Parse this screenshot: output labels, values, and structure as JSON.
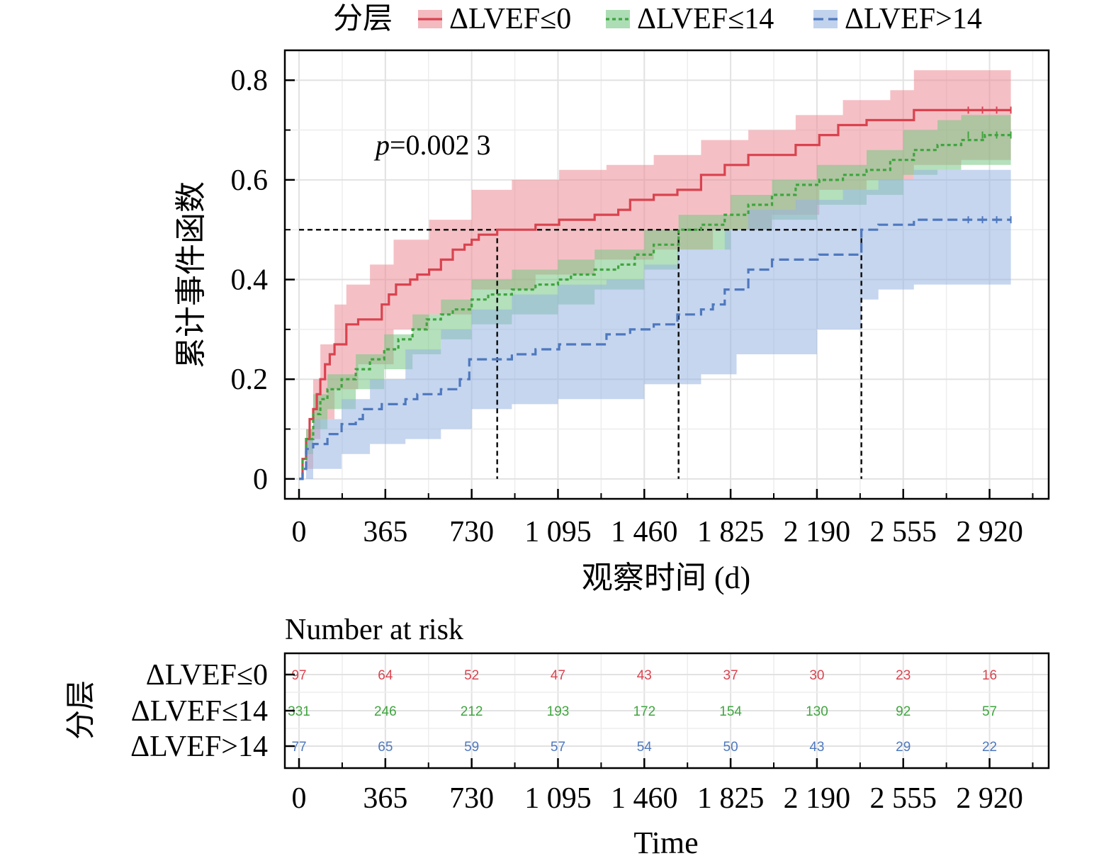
{
  "chart_data": {
    "type": "line",
    "legend": {
      "title": "分层",
      "position": "top",
      "entries": [
        "ΔLVEF≤0",
        "ΔLVEF≤14",
        "ΔLVEF>14"
      ]
    },
    "annotation": {
      "prefix": "p",
      "text": "=0.002 3"
    },
    "xlabel": "观察时间 (d)",
    "ylabel": "累计事件函数",
    "xlim": [
      -60,
      3170
    ],
    "ylim": [
      -0.04,
      0.86
    ],
    "xticks": [
      0,
      365,
      730,
      1095,
      1460,
      1825,
      2190,
      2555,
      2920
    ],
    "xtick_labels": [
      "0",
      "365",
      "730",
      "1 095",
      "1 460",
      "1 825",
      "2 190",
      "2 555",
      "2 920"
    ],
    "yticks": [
      0,
      0.2,
      0.4,
      0.6,
      0.8
    ],
    "ytick_labels": [
      "0",
      "0.2",
      "0.4",
      "0.6",
      "0.8"
    ],
    "grid": true,
    "median_reference": {
      "y": 0.5,
      "x": [
        838,
        1605,
        2378
      ]
    },
    "series": [
      {
        "name": "ΔLVEF≤0",
        "color": "#d9434f",
        "band_color": "#eb8c96",
        "line_style": "solid",
        "points": [
          [
            0,
            0
          ],
          [
            15,
            0.04
          ],
          [
            30,
            0.08
          ],
          [
            45,
            0.12
          ],
          [
            60,
            0.14
          ],
          [
            75,
            0.17
          ],
          [
            90,
            0.2
          ],
          [
            110,
            0.23
          ],
          [
            130,
            0.25
          ],
          [
            150,
            0.27
          ],
          [
            200,
            0.31
          ],
          [
            250,
            0.32
          ],
          [
            300,
            0.32
          ],
          [
            350,
            0.35
          ],
          [
            380,
            0.37
          ],
          [
            410,
            0.39
          ],
          [
            440,
            0.39
          ],
          [
            470,
            0.4
          ],
          [
            500,
            0.41
          ],
          [
            550,
            0.42
          ],
          [
            600,
            0.44
          ],
          [
            650,
            0.46
          ],
          [
            700,
            0.47
          ],
          [
            730,
            0.48
          ],
          [
            760,
            0.49
          ],
          [
            838,
            0.5
          ],
          [
            1000,
            0.51
          ],
          [
            1100,
            0.52
          ],
          [
            1250,
            0.53
          ],
          [
            1350,
            0.54
          ],
          [
            1400,
            0.56
          ],
          [
            1500,
            0.57
          ],
          [
            1600,
            0.58
          ],
          [
            1700,
            0.61
          ],
          [
            1800,
            0.63
          ],
          [
            1900,
            0.65
          ],
          [
            2100,
            0.67
          ],
          [
            2200,
            0.69
          ],
          [
            2280,
            0.71
          ],
          [
            2400,
            0.72
          ],
          [
            2500,
            0.72
          ],
          [
            2600,
            0.74
          ],
          [
            3010,
            0.74
          ]
        ],
        "lower": [
          [
            0,
            0
          ],
          [
            30,
            0.02
          ],
          [
            60,
            0.08
          ],
          [
            90,
            0.12
          ],
          [
            150,
            0.18
          ],
          [
            250,
            0.23
          ],
          [
            400,
            0.3
          ],
          [
            550,
            0.33
          ],
          [
            730,
            0.38
          ],
          [
            1000,
            0.41
          ],
          [
            1250,
            0.44
          ],
          [
            1500,
            0.46
          ],
          [
            1750,
            0.5
          ],
          [
            2000,
            0.53
          ],
          [
            2200,
            0.58
          ],
          [
            2400,
            0.6
          ],
          [
            2600,
            0.63
          ],
          [
            2800,
            0.64
          ],
          [
            3010,
            0.65
          ]
        ],
        "upper": [
          [
            0,
            0
          ],
          [
            30,
            0.1
          ],
          [
            60,
            0.2
          ],
          [
            90,
            0.27
          ],
          [
            150,
            0.35
          ],
          [
            200,
            0.39
          ],
          [
            300,
            0.43
          ],
          [
            400,
            0.48
          ],
          [
            550,
            0.52
          ],
          [
            730,
            0.58
          ],
          [
            900,
            0.6
          ],
          [
            1100,
            0.62
          ],
          [
            1300,
            0.63
          ],
          [
            1500,
            0.65
          ],
          [
            1700,
            0.68
          ],
          [
            1900,
            0.7
          ],
          [
            2100,
            0.73
          ],
          [
            2300,
            0.76
          ],
          [
            2500,
            0.78
          ],
          [
            2600,
            0.82
          ],
          [
            3010,
            0.82
          ]
        ]
      },
      {
        "name": "ΔLVEF≤14",
        "color": "#3fa53f",
        "band_color": "#77c683",
        "line_style": "dotted",
        "points": [
          [
            0,
            0
          ],
          [
            15,
            0.04
          ],
          [
            30,
            0.08
          ],
          [
            60,
            0.13
          ],
          [
            90,
            0.16
          ],
          [
            120,
            0.18
          ],
          [
            180,
            0.2
          ],
          [
            240,
            0.22
          ],
          [
            300,
            0.24
          ],
          [
            360,
            0.26
          ],
          [
            420,
            0.28
          ],
          [
            480,
            0.3
          ],
          [
            540,
            0.32
          ],
          [
            600,
            0.33
          ],
          [
            650,
            0.34
          ],
          [
            730,
            0.36
          ],
          [
            800,
            0.37
          ],
          [
            900,
            0.38
          ],
          [
            1000,
            0.39
          ],
          [
            1095,
            0.4
          ],
          [
            1150,
            0.41
          ],
          [
            1250,
            0.42
          ],
          [
            1350,
            0.43
          ],
          [
            1420,
            0.45
          ],
          [
            1500,
            0.47
          ],
          [
            1605,
            0.5
          ],
          [
            1700,
            0.51
          ],
          [
            1800,
            0.53
          ],
          [
            1900,
            0.55
          ],
          [
            2000,
            0.57
          ],
          [
            2100,
            0.59
          ],
          [
            2200,
            0.6
          ],
          [
            2300,
            0.61
          ],
          [
            2400,
            0.62
          ],
          [
            2500,
            0.64
          ],
          [
            2600,
            0.66
          ],
          [
            2700,
            0.67
          ],
          [
            2800,
            0.68
          ],
          [
            2900,
            0.69
          ],
          [
            3010,
            0.69
          ]
        ],
        "lower": [
          [
            0,
            0
          ],
          [
            30,
            0.05
          ],
          [
            60,
            0.1
          ],
          [
            120,
            0.14
          ],
          [
            240,
            0.18
          ],
          [
            360,
            0.22
          ],
          [
            480,
            0.25
          ],
          [
            600,
            0.28
          ],
          [
            730,
            0.31
          ],
          [
            900,
            0.33
          ],
          [
            1095,
            0.35
          ],
          [
            1250,
            0.38
          ],
          [
            1460,
            0.42
          ],
          [
            1605,
            0.46
          ],
          [
            1825,
            0.5
          ],
          [
            2000,
            0.52
          ],
          [
            2190,
            0.55
          ],
          [
            2400,
            0.57
          ],
          [
            2555,
            0.61
          ],
          [
            2700,
            0.62
          ],
          [
            2800,
            0.63
          ],
          [
            3010,
            0.64
          ]
        ],
        "upper": [
          [
            0,
            0
          ],
          [
            30,
            0.1
          ],
          [
            60,
            0.17
          ],
          [
            120,
            0.21
          ],
          [
            240,
            0.25
          ],
          [
            360,
            0.29
          ],
          [
            480,
            0.33
          ],
          [
            600,
            0.36
          ],
          [
            730,
            0.4
          ],
          [
            900,
            0.42
          ],
          [
            1095,
            0.44
          ],
          [
            1250,
            0.46
          ],
          [
            1460,
            0.5
          ],
          [
            1605,
            0.53
          ],
          [
            1825,
            0.57
          ],
          [
            2000,
            0.6
          ],
          [
            2190,
            0.63
          ],
          [
            2400,
            0.66
          ],
          [
            2555,
            0.7
          ],
          [
            2700,
            0.72
          ],
          [
            2800,
            0.73
          ],
          [
            3010,
            0.74
          ]
        ]
      },
      {
        "name": "ΔLVEF>14",
        "color": "#4e78be",
        "band_color": "#97b4e1",
        "line_style": "dashed",
        "points": [
          [
            0,
            0
          ],
          [
            15,
            0.02
          ],
          [
            30,
            0.06
          ],
          [
            60,
            0.07
          ],
          [
            120,
            0.09
          ],
          [
            180,
            0.11
          ],
          [
            240,
            0.12
          ],
          [
            270,
            0.14
          ],
          [
            350,
            0.15
          ],
          [
            450,
            0.16
          ],
          [
            500,
            0.17
          ],
          [
            600,
            0.18
          ],
          [
            680,
            0.2
          ],
          [
            720,
            0.24
          ],
          [
            800,
            0.24
          ],
          [
            900,
            0.25
          ],
          [
            1000,
            0.26
          ],
          [
            1100,
            0.27
          ],
          [
            1300,
            0.29
          ],
          [
            1400,
            0.3
          ],
          [
            1500,
            0.31
          ],
          [
            1600,
            0.33
          ],
          [
            1700,
            0.34
          ],
          [
            1750,
            0.35
          ],
          [
            1800,
            0.38
          ],
          [
            1900,
            0.42
          ],
          [
            2000,
            0.44
          ],
          [
            2200,
            0.45
          ],
          [
            2378,
            0.5
          ],
          [
            2450,
            0.51
          ],
          [
            2600,
            0.52
          ],
          [
            3010,
            0.52
          ]
        ],
        "lower": [
          [
            0,
            0
          ],
          [
            60,
            0.02
          ],
          [
            180,
            0.05
          ],
          [
            300,
            0.07
          ],
          [
            450,
            0.08
          ],
          [
            600,
            0.1
          ],
          [
            730,
            0.14
          ],
          [
            900,
            0.15
          ],
          [
            1095,
            0.16
          ],
          [
            1460,
            0.19
          ],
          [
            1700,
            0.21
          ],
          [
            1850,
            0.25
          ],
          [
            2190,
            0.3
          ],
          [
            2378,
            0.36
          ],
          [
            2450,
            0.38
          ],
          [
            2600,
            0.39
          ],
          [
            3010,
            0.39
          ]
        ],
        "upper": [
          [
            0,
            0
          ],
          [
            30,
            0.08
          ],
          [
            60,
            0.12
          ],
          [
            180,
            0.16
          ],
          [
            300,
            0.2
          ],
          [
            450,
            0.26
          ],
          [
            600,
            0.3
          ],
          [
            730,
            0.34
          ],
          [
            900,
            0.37
          ],
          [
            1095,
            0.39
          ],
          [
            1300,
            0.4
          ],
          [
            1460,
            0.43
          ],
          [
            1600,
            0.46
          ],
          [
            1800,
            0.5
          ],
          [
            1900,
            0.54
          ],
          [
            2100,
            0.56
          ],
          [
            2300,
            0.58
          ],
          [
            2450,
            0.6
          ],
          [
            2600,
            0.62
          ],
          [
            3010,
            0.62
          ]
        ]
      }
    ]
  },
  "risk_table": {
    "title": "Number at risk",
    "ylabel": "分层",
    "xlabel": "Time",
    "xticks": [
      0,
      365,
      730,
      1095,
      1460,
      1825,
      2190,
      2555,
      2920
    ],
    "xtick_labels": [
      "0",
      "365",
      "730",
      "1 095",
      "1 460",
      "1 825",
      "2 190",
      "2 555",
      "2 920"
    ],
    "rows": [
      {
        "name": "ΔLVEF≤0",
        "color": "#d9434f",
        "values": [
          97,
          64,
          52,
          47,
          43,
          37,
          30,
          23,
          16
        ]
      },
      {
        "name": "ΔLVEF≤14",
        "color": "#3fa53f",
        "values": [
          331,
          246,
          212,
          193,
          172,
          154,
          130,
          92,
          57
        ]
      },
      {
        "name": "ΔLVEF>14",
        "color": "#4e78be",
        "values": [
          77,
          65,
          59,
          57,
          54,
          50,
          43,
          29,
          22
        ]
      }
    ]
  }
}
